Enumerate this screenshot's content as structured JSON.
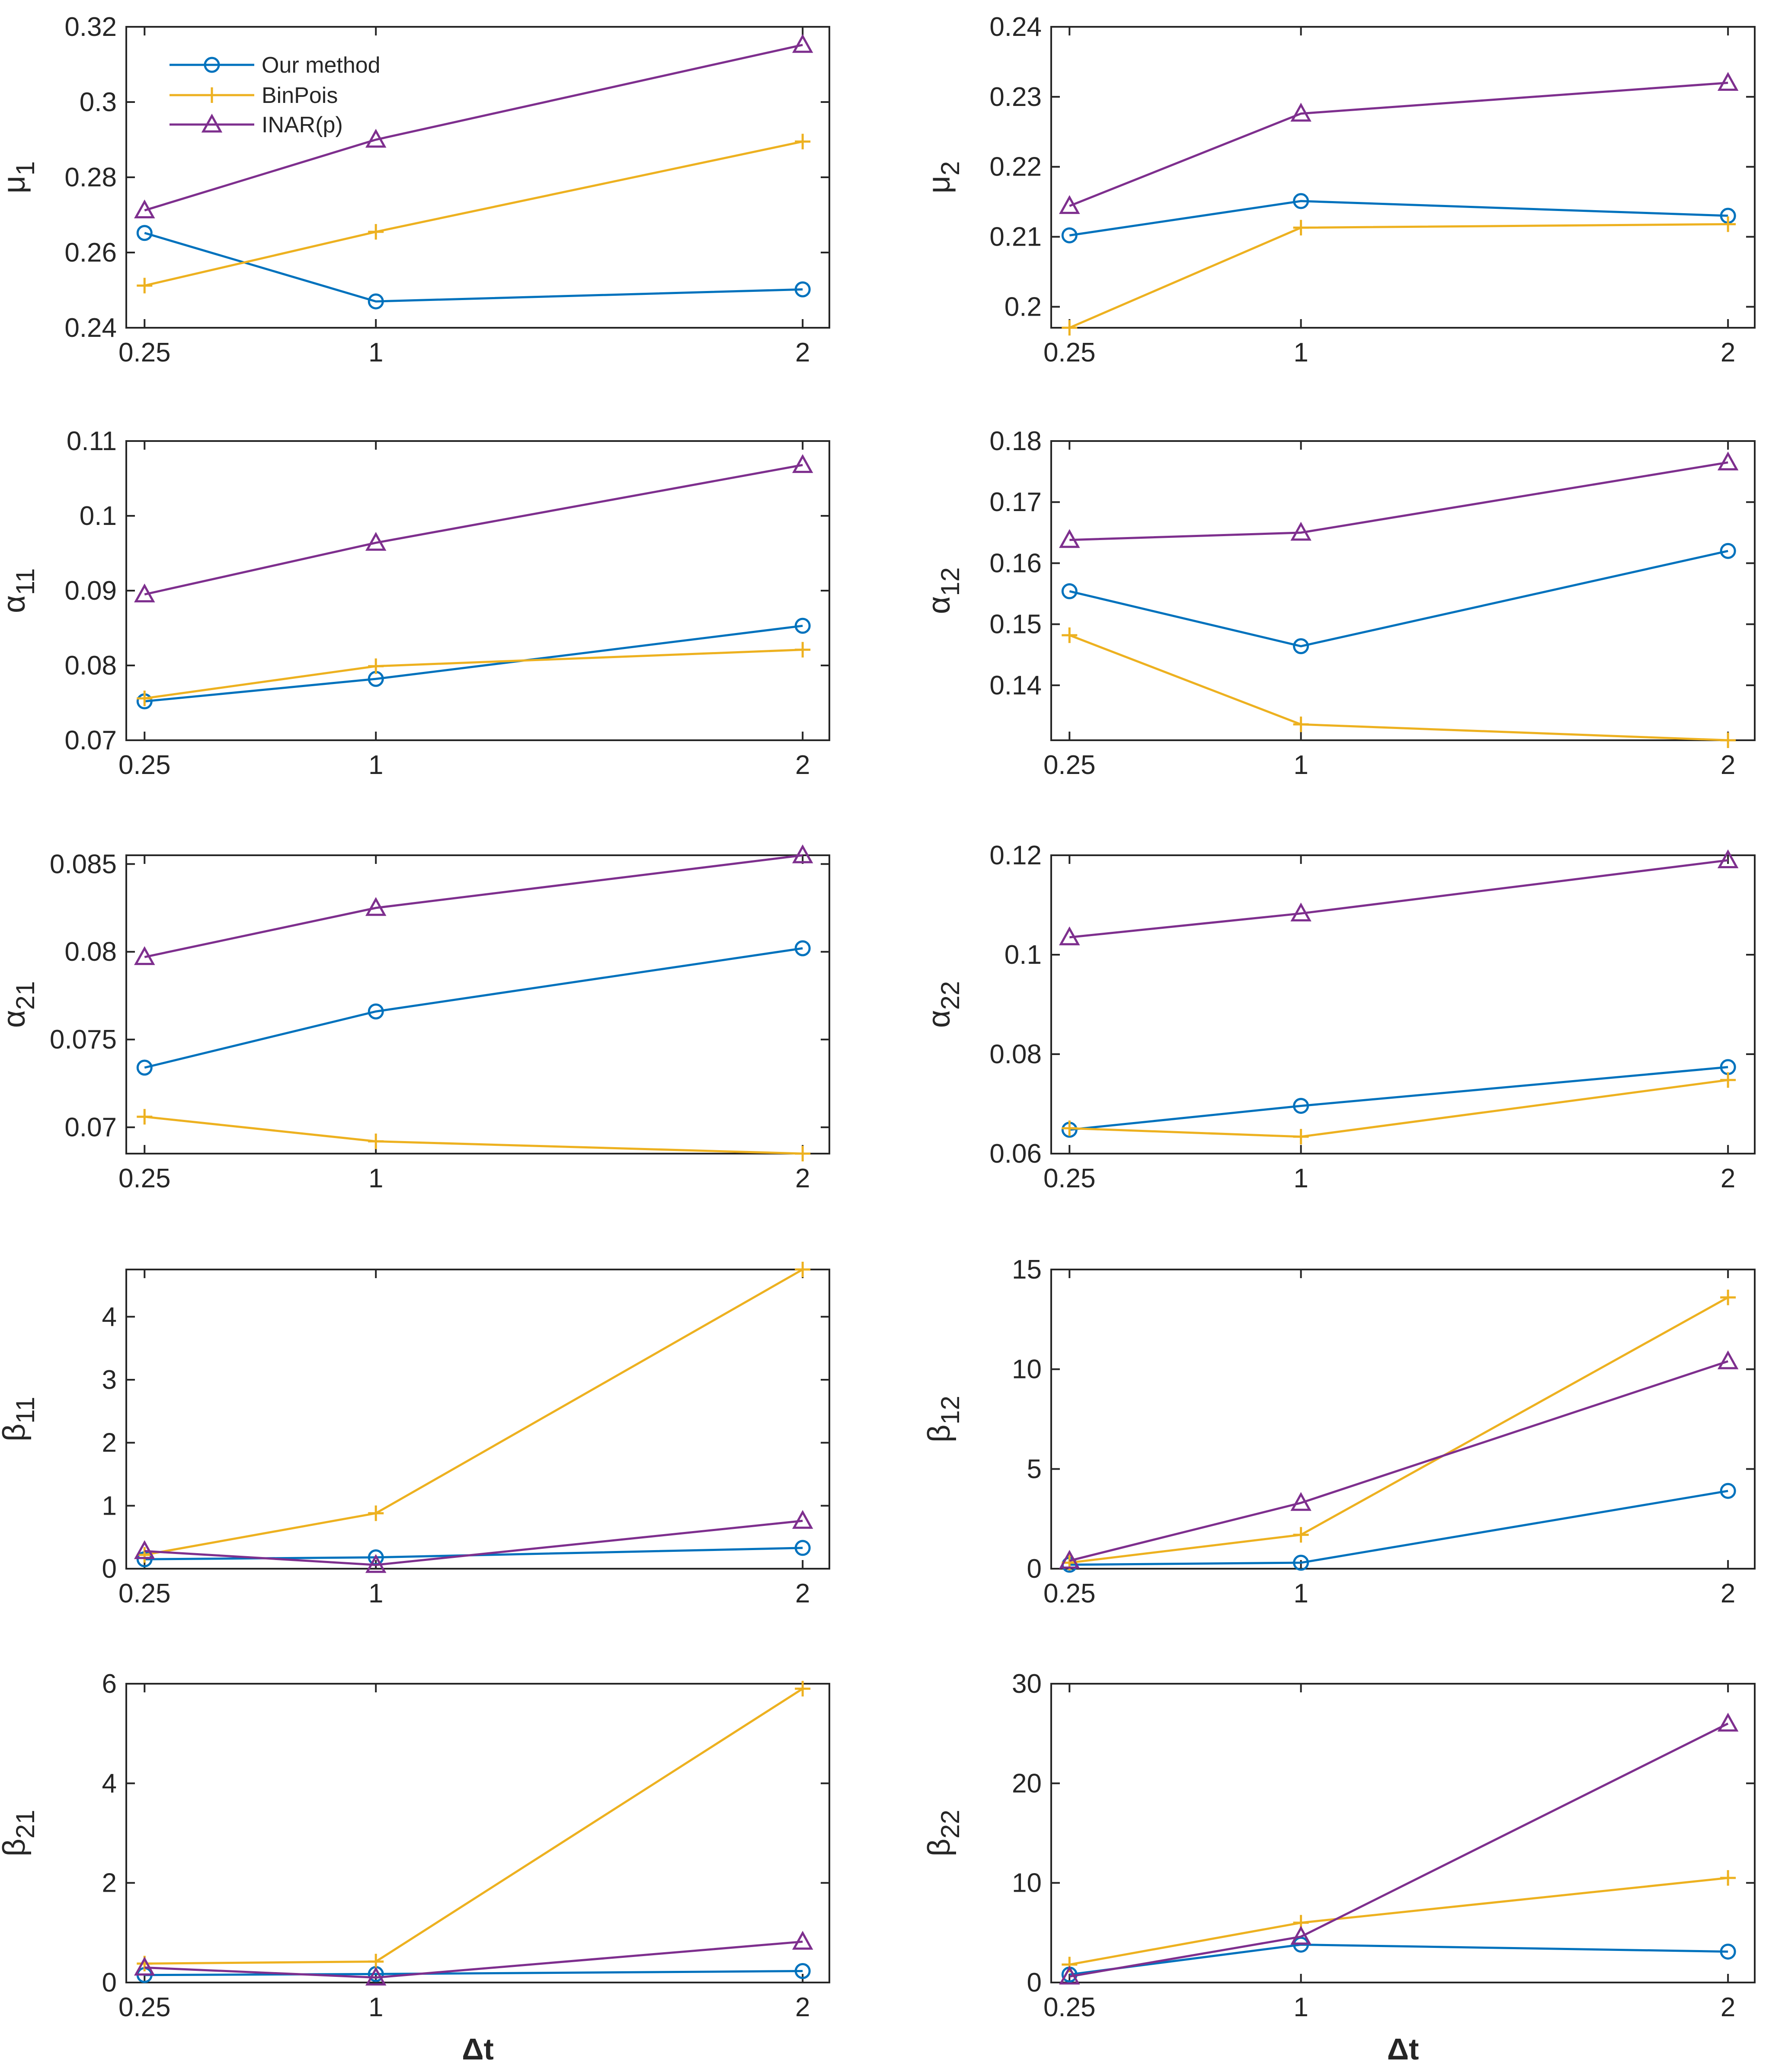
{
  "legend": {
    "entries": [
      "Our method",
      "BinPois",
      "INAR(p)"
    ]
  },
  "colors": {
    "Our method": "#0072BD",
    "BinPois": "#EDB120",
    "INAR(p)": "#7E2F8E",
    "axes": "#262626"
  },
  "chart_data": [
    {
      "type": "line",
      "ylabel_sym": "μ",
      "ylabel_sub": "1",
      "xlabel": "",
      "categories": [
        "0.25",
        "1",
        "2"
      ],
      "ylim": [
        0.24,
        0.32
      ],
      "yticks": [
        "0.24",
        "0.26",
        "0.28",
        "0.3",
        "0.32"
      ],
      "ytick_values": [
        0.24,
        0.26,
        0.28,
        0.3,
        0.32
      ],
      "series": [
        {
          "name": "Our method",
          "values": [
            0.2652,
            0.247,
            0.2502
          ]
        },
        {
          "name": "BinPois",
          "values": [
            0.2512,
            0.2655,
            0.2895
          ]
        },
        {
          "name": "INAR(p)",
          "values": [
            0.2712,
            0.29,
            0.3152
          ]
        }
      ]
    },
    {
      "type": "line",
      "ylabel_sym": "μ",
      "ylabel_sub": "2",
      "xlabel": "",
      "categories": [
        "0.25",
        "1",
        "2"
      ],
      "ylim": [
        0.197,
        0.24
      ],
      "yticks": [
        "0.2",
        "0.21",
        "0.22",
        "0.23",
        "0.24"
      ],
      "ytick_values": [
        0.2,
        0.21,
        0.22,
        0.23,
        0.24
      ],
      "series": [
        {
          "name": "Our method",
          "values": [
            0.2102,
            0.2151,
            0.213
          ]
        },
        {
          "name": "BinPois",
          "values": [
            0.197,
            0.2113,
            0.2118
          ]
        },
        {
          "name": "INAR(p)",
          "values": [
            0.2144,
            0.2276,
            0.232
          ]
        }
      ]
    },
    {
      "type": "line",
      "ylabel_sym": "α",
      "ylabel_sub": "11",
      "xlabel": "",
      "categories": [
        "0.25",
        "1",
        "2"
      ],
      "ylim": [
        0.07,
        0.11
      ],
      "yticks": [
        "0.07",
        "0.08",
        "0.09",
        "0.1",
        "0.11"
      ],
      "ytick_values": [
        0.07,
        0.08,
        0.09,
        0.1,
        0.11
      ],
      "series": [
        {
          "name": "Our method",
          "values": [
            0.0752,
            0.0782,
            0.0853
          ]
        },
        {
          "name": "BinPois",
          "values": [
            0.0756,
            0.0799,
            0.0821
          ]
        },
        {
          "name": "INAR(p)",
          "values": [
            0.0895,
            0.0964,
            0.1068
          ]
        }
      ]
    },
    {
      "type": "line",
      "ylabel_sym": "α",
      "ylabel_sub": "12",
      "xlabel": "",
      "categories": [
        "0.25",
        "1",
        "2"
      ],
      "ylim": [
        0.131,
        0.18
      ],
      "yticks": [
        "0.14",
        "0.15",
        "0.16",
        "0.17",
        "0.18"
      ],
      "ytick_values": [
        0.14,
        0.15,
        0.16,
        0.17,
        0.18
      ],
      "series": [
        {
          "name": "Our method",
          "values": [
            0.1554,
            0.1464,
            0.162
          ]
        },
        {
          "name": "BinPois",
          "values": [
            0.1482,
            0.1336,
            0.131
          ]
        },
        {
          "name": "INAR(p)",
          "values": [
            0.1638,
            0.165,
            0.1765
          ]
        }
      ]
    },
    {
      "type": "line",
      "ylabel_sym": "α",
      "ylabel_sub": "21",
      "xlabel": "",
      "categories": [
        "0.25",
        "1",
        "2"
      ],
      "ylim": [
        0.0685,
        0.0855
      ],
      "yticks": [
        "0.07",
        "0.075",
        "0.08",
        "0.085"
      ],
      "ytick_values": [
        0.07,
        0.075,
        0.08,
        0.085
      ],
      "series": [
        {
          "name": "Our method",
          "values": [
            0.0734,
            0.0766,
            0.0802
          ]
        },
        {
          "name": "BinPois",
          "values": [
            0.0706,
            0.0692,
            0.0685
          ]
        },
        {
          "name": "INAR(p)",
          "values": [
            0.0797,
            0.0825,
            0.0855
          ]
        }
      ]
    },
    {
      "type": "line",
      "ylabel_sym": "α",
      "ylabel_sub": "22",
      "xlabel": "",
      "categories": [
        "0.25",
        "1",
        "2"
      ],
      "ylim": [
        0.06,
        0.12
      ],
      "yticks": [
        "0.06",
        "0.08",
        "0.1",
        "0.12"
      ],
      "ytick_values": [
        0.06,
        0.08,
        0.1,
        0.12
      ],
      "series": [
        {
          "name": "Our method",
          "values": [
            0.0648,
            0.0696,
            0.0774
          ]
        },
        {
          "name": "BinPois",
          "values": [
            0.0651,
            0.0634,
            0.0748
          ]
        },
        {
          "name": "INAR(p)",
          "values": [
            0.1035,
            0.1083,
            0.119
          ]
        }
      ]
    },
    {
      "type": "line",
      "ylabel_sym": "β",
      "ylabel_sub": "11",
      "xlabel": "",
      "categories": [
        "0.25",
        "1",
        "2"
      ],
      "ylim": [
        0,
        4.75
      ],
      "yticks": [
        "0",
        "1",
        "2",
        "3",
        "4"
      ],
      "ytick_values": [
        0,
        1,
        2,
        3,
        4
      ],
      "series": [
        {
          "name": "Our method",
          "values": [
            0.15,
            0.18,
            0.33
          ]
        },
        {
          "name": "BinPois",
          "values": [
            0.22,
            0.88,
            4.75
          ]
        },
        {
          "name": "INAR(p)",
          "values": [
            0.28,
            0.06,
            0.76
          ]
        }
      ]
    },
    {
      "type": "line",
      "ylabel_sym": "β",
      "ylabel_sub": "12",
      "xlabel": "",
      "categories": [
        "0.25",
        "1",
        "2"
      ],
      "ylim": [
        0,
        15
      ],
      "yticks": [
        "0",
        "5",
        "10",
        "15"
      ],
      "ytick_values": [
        0,
        5,
        10,
        15
      ],
      "series": [
        {
          "name": "Our method",
          "values": [
            0.2,
            0.3,
            3.9
          ]
        },
        {
          "name": "BinPois",
          "values": [
            0.3,
            1.7,
            13.6
          ]
        },
        {
          "name": "INAR(p)",
          "values": [
            0.4,
            3.3,
            10.4
          ]
        }
      ]
    },
    {
      "type": "line",
      "ylabel_sym": "β",
      "ylabel_sub": "21",
      "xlabel": "Δt",
      "categories": [
        "0.25",
        "1",
        "2"
      ],
      "ylim": [
        0,
        6
      ],
      "yticks": [
        "0",
        "2",
        "4",
        "6"
      ],
      "ytick_values": [
        0,
        2,
        4,
        6
      ],
      "series": [
        {
          "name": "Our method",
          "values": [
            0.15,
            0.17,
            0.23
          ]
        },
        {
          "name": "BinPois",
          "values": [
            0.38,
            0.42,
            5.9
          ]
        },
        {
          "name": "INAR(p)",
          "values": [
            0.3,
            0.1,
            0.82
          ]
        }
      ]
    },
    {
      "type": "line",
      "ylabel_sym": "β",
      "ylabel_sub": "22",
      "xlabel": "Δt",
      "categories": [
        "0.25",
        "1",
        "2"
      ],
      "ylim": [
        0,
        30
      ],
      "yticks": [
        "0",
        "10",
        "20",
        "30"
      ],
      "ytick_values": [
        0,
        10,
        20,
        30
      ],
      "series": [
        {
          "name": "Our method",
          "values": [
            0.8,
            3.8,
            3.1
          ]
        },
        {
          "name": "BinPois",
          "values": [
            1.8,
            6.0,
            10.5
          ]
        },
        {
          "name": "INAR(p)",
          "values": [
            0.6,
            4.6,
            26.0
          ]
        }
      ]
    }
  ]
}
